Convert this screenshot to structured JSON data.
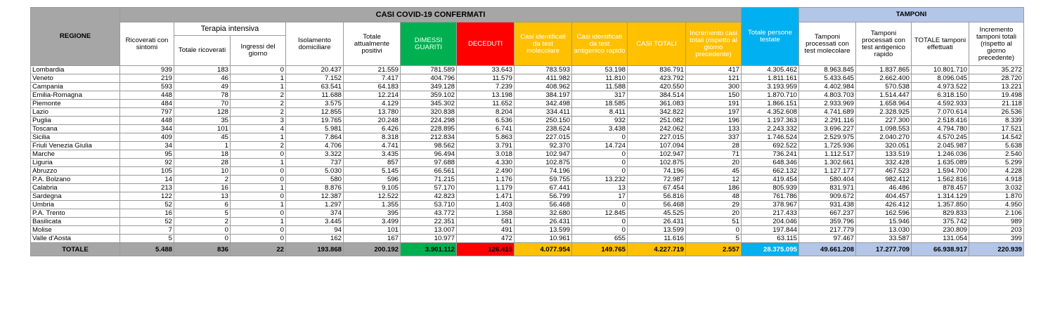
{
  "header": {
    "regione": "REGIONE",
    "casi_title": "CASI COVID-19 CONFERMATI",
    "tamponi_title": "TAMPONI",
    "terapia_intensiva": "Terapia intensiva",
    "cols": [
      "Ricoverati con sintomi",
      "Totale ricoverati",
      "Ingressi del giorno",
      "Isolamento domiciliare",
      "Totale attualmente positivi",
      "DIMESSI GUARITI",
      "DECEDUTI",
      "Casi identificati da test molecolare",
      "Casi identificati da test antigenico rapido",
      "CASI TOTALI",
      "Incremento casi totali (rispetto al giorno precedente)",
      "Totale persone testate",
      "Tamponi processati con test molecolare",
      "Tamponi processati con test antigenico rapido",
      "TOTALE tamponi effettuati",
      "Incremento tamponi totali (rispetto al giorno precedente)"
    ]
  },
  "rows": [
    [
      "Lombardia",
      "939",
      "183",
      "0",
      "20.437",
      "21.559",
      "781.589",
      "33.643",
      "783.593",
      "53.198",
      "836.791",
      "417",
      "4.305.462",
      "8.963.845",
      "1.837.865",
      "10.801.710",
      "35.272"
    ],
    [
      "Veneto",
      "219",
      "46",
      "1",
      "7.152",
      "7.417",
      "404.796",
      "11.579",
      "411.982",
      "11.810",
      "423.792",
      "121",
      "1.811.161",
      "5.433.645",
      "2.662.400",
      "8.096.045",
      "28.720"
    ],
    [
      "Campania",
      "593",
      "49",
      "1",
      "63.541",
      "64.183",
      "349.128",
      "7.239",
      "408.962",
      "11.588",
      "420.550",
      "300",
      "3.193.959",
      "4.402.984",
      "570.538",
      "4.973.522",
      "13.221"
    ],
    [
      "Emilia-Romagna",
      "448",
      "78",
      "2",
      "11.688",
      "12.214",
      "359.102",
      "13.198",
      "384.197",
      "317",
      "384.514",
      "150",
      "1.870.710",
      "4.803.703",
      "1.514.447",
      "6.318.150",
      "19.498"
    ],
    [
      "Piemonte",
      "484",
      "70",
      "2",
      "3.575",
      "4.129",
      "345.302",
      "11.652",
      "342.498",
      "18.585",
      "361.083",
      "191",
      "1.866.151",
      "2.933.969",
      "1.658.964",
      "4.592.933",
      "21.118"
    ],
    [
      "Lazio",
      "797",
      "128",
      "2",
      "12.855",
      "13.780",
      "320.838",
      "8.204",
      "334.411",
      "8.411",
      "342.822",
      "197",
      "4.352.608",
      "4.741.689",
      "2.328.925",
      "7.070.614",
      "26.536"
    ],
    [
      "Puglia",
      "448",
      "35",
      "3",
      "19.765",
      "20.248",
      "224.298",
      "6.536",
      "250.150",
      "932",
      "251.082",
      "196",
      "1.197.363",
      "2.291.116",
      "227.300",
      "2.518.416",
      "8.339"
    ],
    [
      "Toscana",
      "344",
      "101",
      "4",
      "5.981",
      "6.426",
      "228.895",
      "6.741",
      "238.624",
      "3.438",
      "242.062",
      "133",
      "2.243.332",
      "3.696.227",
      "1.098.553",
      "4.794.780",
      "17.521"
    ],
    [
      "Sicilia",
      "409",
      "45",
      "1",
      "7.864",
      "8.318",
      "212.834",
      "5.863",
      "227.015",
      "0",
      "227.015",
      "337",
      "1.746.524",
      "2.529.975",
      "2.040.270",
      "4.570.245",
      "14.542"
    ],
    [
      "Friuli Venezia Giulia",
      "34",
      "1",
      "2",
      "4.706",
      "4.741",
      "98.562",
      "3.791",
      "92.370",
      "14.724",
      "107.094",
      "28",
      "692.522",
      "1.725.936",
      "320.051",
      "2.045.987",
      "5.638"
    ],
    [
      "Marche",
      "95",
      "18",
      "0",
      "3.322",
      "3.435",
      "96.494",
      "3.018",
      "102.947",
      "0",
      "102.947",
      "71",
      "736.241",
      "1.112.517",
      "133.519",
      "1.246.036",
      "2.540"
    ],
    [
      "Liguria",
      "92",
      "28",
      "1",
      "737",
      "857",
      "97.688",
      "4.330",
      "102.875",
      "0",
      "102.875",
      "20",
      "648.346",
      "1.302.661",
      "332.428",
      "1.635.089",
      "5.299"
    ],
    [
      "Abruzzo",
      "105",
      "10",
      "0",
      "5.030",
      "5.145",
      "66.561",
      "2.490",
      "74.196",
      "0",
      "74.196",
      "45",
      "662.132",
      "1.127.177",
      "467.523",
      "1.594.700",
      "4.228"
    ],
    [
      "P.A. Bolzano",
      "14",
      "2",
      "0",
      "580",
      "596",
      "71.215",
      "1.176",
      "59.755",
      "13.232",
      "72.987",
      "12",
      "419.454",
      "580.404",
      "982.412",
      "1.562.816",
      "4.918"
    ],
    [
      "Calabria",
      "213",
      "16",
      "1",
      "8.876",
      "9.105",
      "57.170",
      "1.179",
      "67.441",
      "13",
      "67.454",
      "186",
      "805.939",
      "831.971",
      "46.486",
      "878.457",
      "3.032"
    ],
    [
      "Sardegna",
      "122",
      "13",
      "0",
      "12.387",
      "12.522",
      "42.823",
      "1.471",
      "56.799",
      "17",
      "56.816",
      "48",
      "761.786",
      "909.672",
      "404.457",
      "1.314.129",
      "1.870"
    ],
    [
      "Umbria",
      "52",
      "6",
      "1",
      "1.297",
      "1.355",
      "53.710",
      "1.403",
      "56.468",
      "0",
      "56.468",
      "29",
      "378.967",
      "931.438",
      "426.412",
      "1.357.850",
      "4.950"
    ],
    [
      "P.A. Trento",
      "16",
      "5",
      "0",
      "374",
      "395",
      "43.772",
      "1.358",
      "32.680",
      "12.845",
      "45.525",
      "20",
      "217.433",
      "667.237",
      "162.596",
      "829.833",
      "2.106"
    ],
    [
      "Basilicata",
      "52",
      "2",
      "1",
      "3.445",
      "3.499",
      "22.351",
      "581",
      "26.431",
      "0",
      "26.431",
      "51",
      "204.046",
      "359.796",
      "15.946",
      "375.742",
      "989"
    ],
    [
      "Molise",
      "7",
      "0",
      "0",
      "94",
      "101",
      "13.007",
      "491",
      "13.599",
      "0",
      "13.599",
      "0",
      "197.844",
      "217.779",
      "13.030",
      "230.809",
      "203"
    ],
    [
      "Valle d'Aosta",
      "5",
      "0",
      "0",
      "162",
      "167",
      "10.977",
      "472",
      "10.961",
      "655",
      "11.616",
      "5",
      "63.115",
      "97.467",
      "33.587",
      "131.054",
      "399"
    ]
  ],
  "totale": [
    "TOTALE",
    "5.488",
    "836",
    "22",
    "193.868",
    "200.192",
    "3.901.112",
    "126.415",
    "4.077.954",
    "149.765",
    "4.227.719",
    "2.557",
    "28.375.095",
    "49.661.208",
    "17.277.709",
    "66.938.917",
    "220.939"
  ]
}
